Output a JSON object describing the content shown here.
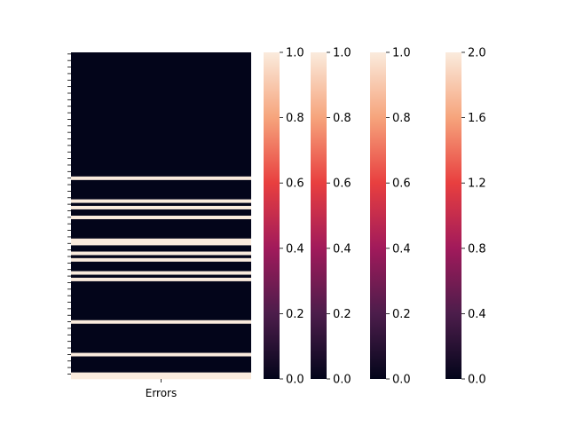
{
  "chart_data": [
    {
      "type": "heatmap",
      "x_categories": [
        "Errors"
      ],
      "row_count": 100,
      "flagged_rows": [
        38,
        45,
        47,
        50,
        57,
        58,
        61,
        63,
        67,
        69,
        82,
        92,
        98,
        99
      ],
      "values_note_colors": {
        "zero": "#03051a",
        "one": "#faebdd"
      },
      "colorbar_ticks": [
        "0.0",
        "0.2",
        "0.4",
        "0.6",
        "0.8",
        "1.0"
      ]
    },
    {
      "type": "colorbar",
      "ticks": [
        "0.0",
        "0.2",
        "0.4",
        "0.6",
        "0.8",
        "1.0"
      ],
      "range": [
        0,
        1
      ]
    },
    {
      "type": "colorbar",
      "ticks": [
        "0.0",
        "0.2",
        "0.4",
        "0.6",
        "0.8",
        "1.0"
      ],
      "range": [
        0,
        1
      ]
    },
    {
      "type": "colorbar",
      "ticks": [
        "0.0",
        "0.4",
        "0.8",
        "1.2",
        "1.6",
        "2.0"
      ],
      "range": [
        0,
        2
      ]
    }
  ]
}
